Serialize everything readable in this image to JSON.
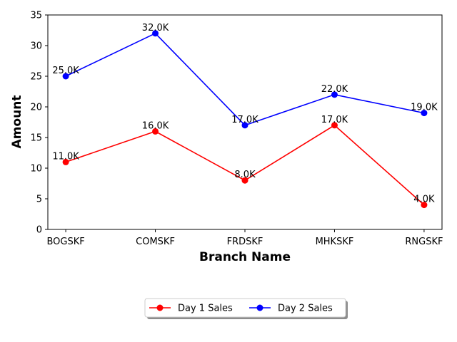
{
  "chart_data": {
    "type": "line",
    "title": "",
    "xlabel": "Branch Name",
    "ylabel": "Amount",
    "categories": [
      "BOGSKF",
      "COMSKF",
      "FRDSKF",
      "MHKSKF",
      "RNGSKF"
    ],
    "ylim": [
      0,
      35
    ],
    "yticks": [
      0,
      5,
      10,
      15,
      20,
      25,
      30,
      35
    ],
    "grid": false,
    "legend_position": "bottom-center",
    "series": [
      {
        "name": "Day 1 Sales",
        "color": "#ff0000",
        "values": [
          11,
          16,
          8,
          17,
          4
        ],
        "labels": [
          "11.0K",
          "16.0K",
          "8.0K",
          "17.0K",
          "4.0K"
        ]
      },
      {
        "name": "Day 2 Sales",
        "color": "#0000ff",
        "values": [
          25,
          32,
          17,
          22,
          19
        ],
        "labels": [
          "25.0K",
          "32.0K",
          "17.0K",
          "22.0K",
          "19.0K"
        ]
      }
    ]
  }
}
